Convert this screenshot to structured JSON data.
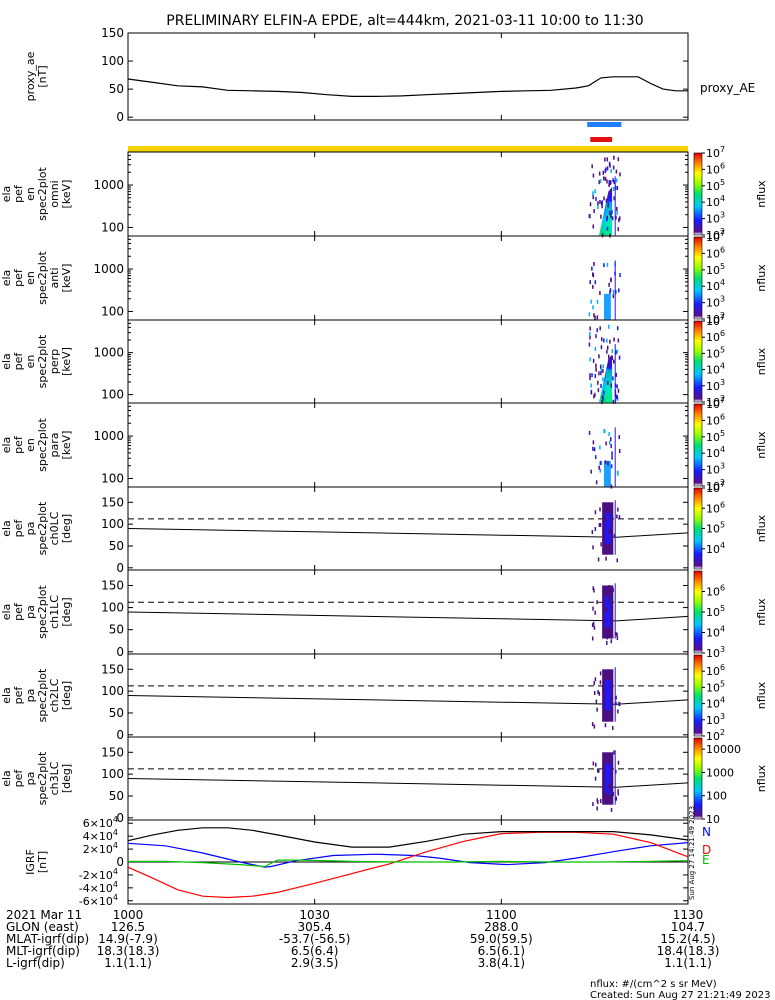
{
  "title": "PRELIMINARY ELFIN-A EPDE, alt=444km, 2021-03-11 10:00 to 11:30",
  "colors": {
    "state_bar_yellow": "#f5d200",
    "science_blue": "#1f7fff",
    "science_red": "#e01010",
    "mag_N": "#0000ff",
    "mag_D": "#ff0000",
    "mag_E": "#00c000",
    "mag_total": "#000000"
  },
  "footer_labels": {
    "date_label": "2021 Mar 11",
    "glon_label": "GLON (east)",
    "mlat_label": "MLAT-igrf(dip)",
    "mlt_label": "MLT-igrf(dip)",
    "l_label": "L-igrf(dip)",
    "units_note": "nflux: #/(cm^2 s sr MeV)",
    "created": "Created: Sun Aug 27 21:21:49 2023",
    "side_stamp": "Sun Aug 27 14:21:49 2023"
  },
  "footer_columns": [
    {
      "time": "1000",
      "glon": "126.5",
      "mlat": "14.9(-7.9)",
      "mlt": "18.3(18.3)",
      "l": "1.1(1.1)"
    },
    {
      "time": "1030",
      "glon": "305.4",
      "mlat": "-53.7(-56.5)",
      "mlt": "6.5(6.4)",
      "l": "2.9(3.5)"
    },
    {
      "time": "1100",
      "glon": "288.0",
      "mlat": "59.0(59.5)",
      "mlt": "6.5(6.1)",
      "l": "3.8(4.1)"
    },
    {
      "time": "1130",
      "glon": "104.7",
      "mlat": "15.2(4.5)",
      "mlt": "18.4(18.3)",
      "l": "1.1(1.1)"
    }
  ],
  "chart_data": [
    {
      "type": "line",
      "panel": "proxy_ae",
      "ylabel": [
        "proxy_ae",
        "[nT]"
      ],
      "legend": "proxy_AE",
      "ylim": [
        -5,
        150
      ],
      "yticks": [
        "150",
        "100",
        "50",
        "0"
      ],
      "ytick_values": [
        150,
        100,
        50,
        0
      ],
      "xlim_min": [
        0,
        90
      ],
      "x_min": [
        0,
        4,
        8,
        12,
        16,
        20,
        24,
        28,
        32,
        36,
        40,
        44,
        48,
        52,
        56,
        60,
        64,
        68,
        72,
        74,
        76,
        78,
        80,
        82,
        84,
        86,
        88,
        90
      ],
      "y": [
        68,
        62,
        56,
        54,
        48,
        47,
        46,
        44,
        40,
        37,
        37,
        38,
        40,
        42,
        44,
        46,
        47,
        48,
        52,
        56,
        70,
        72,
        72,
        72,
        60,
        50,
        47,
        47
      ]
    },
    {
      "type": "heatmap",
      "panel": "ela_pef_en_spec2plot_omni",
      "ylabel": [
        "ela",
        "pef",
        "en",
        "spec2plot",
        "omni",
        "[keV]"
      ],
      "yscale": "log",
      "ylim": [
        63,
        6000
      ],
      "yticks": [
        "1000",
        "100"
      ],
      "ytick_values": [
        1000,
        100
      ],
      "colorbar": {
        "label": "nflux",
        "ticks": [
          "10",
          "10",
          "10",
          "10",
          "10",
          "10"
        ],
        "exps": [
          "7",
          "6",
          "5",
          "4",
          "3",
          "2"
        ],
        "values": [
          10000000.0,
          1000000.0,
          100000.0,
          10000.0,
          1000.0,
          100.0
        ],
        "range": [
          100.0,
          10000000.0
        ]
      },
      "events": [
        {
          "t_start_min": 74,
          "t_end_min": 79,
          "peak_energy_keV": [
            60,
            1500
          ],
          "max_flux": 10000000.0
        }
      ]
    },
    {
      "type": "heatmap",
      "panel": "ela_pef_en_spec2plot_anti",
      "ylabel": [
        "ela",
        "pef",
        "en",
        "spec2plot",
        "anti",
        "[keV]"
      ],
      "yscale": "log",
      "ylim": [
        63,
        6000
      ],
      "yticks": [
        "1000",
        "100"
      ],
      "ytick_values": [
        1000,
        100
      ],
      "colorbar": {
        "label": "nflux",
        "ticks": [
          "10",
          "10",
          "10",
          "10",
          "10",
          "10"
        ],
        "exps": [
          "7",
          "6",
          "5",
          "4",
          "3",
          "2"
        ],
        "values": [
          10000000.0,
          1000000.0,
          100000.0,
          10000.0,
          1000.0,
          100.0
        ],
        "range": [
          100.0,
          10000000.0
        ]
      },
      "events": [
        {
          "t_start_min": 76,
          "t_end_min": 78,
          "peak_energy_keV": [
            80,
            400
          ],
          "max_flux": 100000.0
        }
      ]
    },
    {
      "type": "heatmap",
      "panel": "ela_pef_en_spec2plot_perp",
      "ylabel": [
        "ela",
        "pef",
        "en",
        "spec2plot",
        "perp",
        "[keV]"
      ],
      "yscale": "log",
      "ylim": [
        63,
        6000
      ],
      "yticks": [
        "1000",
        "100"
      ],
      "ytick_values": [
        1000,
        100
      ],
      "colorbar": {
        "label": "nflux",
        "ticks": [
          "10",
          "10",
          "10",
          "10",
          "10",
          "10"
        ],
        "exps": [
          "7",
          "6",
          "5",
          "4",
          "3",
          "2"
        ],
        "values": [
          10000000.0,
          1000000.0,
          100000.0,
          10000.0,
          1000.0,
          100.0
        ],
        "range": [
          100.0,
          10000000.0
        ]
      },
      "events": [
        {
          "t_start_min": 74,
          "t_end_min": 79,
          "peak_energy_keV": [
            60,
            1500
          ],
          "max_flux": 10000000.0
        }
      ]
    },
    {
      "type": "heatmap",
      "panel": "ela_pef_en_spec2plot_para",
      "ylabel": [
        "ela",
        "pef",
        "en",
        "spec2plot",
        "para",
        "[keV]"
      ],
      "yscale": "log",
      "ylim": [
        63,
        6000
      ],
      "yticks": [
        "1000",
        "100"
      ],
      "ytick_values": [
        1000,
        100
      ],
      "colorbar": {
        "label": "nflux",
        "ticks": [
          "10",
          "10",
          "10",
          "10",
          "10",
          "10"
        ],
        "exps": [
          "7",
          "6",
          "5",
          "4",
          "3",
          "2"
        ],
        "values": [
          10000000.0,
          1000000.0,
          100000.0,
          10000.0,
          1000.0,
          100.0
        ],
        "range": [
          100.0,
          10000000.0
        ]
      },
      "events": [
        {
          "t_start_min": 76,
          "t_end_min": 78,
          "peak_energy_keV": [
            70,
            300
          ],
          "max_flux": 100000.0
        }
      ]
    },
    {
      "type": "heatmap",
      "panel": "ela_pef_pa_spec2plot_ch0LC",
      "ylabel": [
        "ela",
        "pef",
        "pa",
        "spec2plot",
        "ch0LC",
        "[deg]"
      ],
      "ylim": [
        -5,
        185
      ],
      "yticks": [
        "150",
        "100",
        "50",
        "0"
      ],
      "ytick_values": [
        150,
        100,
        50,
        0
      ],
      "colorbar": {
        "label": "nflux",
        "ticks": [
          "10",
          "10",
          "10",
          "10"
        ],
        "exps": [
          "7",
          "6",
          "5",
          "4"
        ],
        "values": [
          10000000.0,
          1000000.0,
          100000.0,
          10000.0
        ],
        "range": [
          1000.0,
          10000000.0
        ]
      },
      "loss_cone_deg": {
        "solid_start": 90,
        "solid_end": 80,
        "dashed": 112
      }
    },
    {
      "type": "heatmap",
      "panel": "ela_pef_pa_spec2plot_ch1LC",
      "ylabel": [
        "ela",
        "pef",
        "pa",
        "spec2plot",
        "ch1LC",
        "[deg]"
      ],
      "ylim": [
        -5,
        185
      ],
      "yticks": [
        "150",
        "100",
        "50",
        "0"
      ],
      "ytick_values": [
        150,
        100,
        50,
        0
      ],
      "colorbar": {
        "label": "nflux",
        "ticks": [
          "10",
          "10",
          "10",
          "10"
        ],
        "exps": [
          "6",
          "5",
          "4",
          "3"
        ],
        "values": [
          1000000.0,
          100000.0,
          10000.0,
          1000.0
        ],
        "range": [
          1000.0,
          10000000.0
        ]
      },
      "loss_cone_deg": {
        "solid_start": 90,
        "solid_end": 80,
        "dashed": 112
      }
    },
    {
      "type": "heatmap",
      "panel": "ela_pef_pa_spec2plot_ch2LC",
      "ylabel": [
        "ela",
        "pef",
        "pa",
        "spec2plot",
        "ch2LC",
        "[deg]"
      ],
      "ylim": [
        -5,
        185
      ],
      "yticks": [
        "150",
        "100",
        "50",
        "0"
      ],
      "ytick_values": [
        150,
        100,
        50,
        0
      ],
      "colorbar": {
        "label": "nflux",
        "ticks": [
          "10",
          "10",
          "10",
          "10",
          "10"
        ],
        "exps": [
          "6",
          "5",
          "4",
          "3",
          "2"
        ],
        "values": [
          1000000.0,
          100000.0,
          10000.0,
          1000.0,
          100.0
        ],
        "range": [
          100.0,
          10000000.0
        ]
      },
      "loss_cone_deg": {
        "solid_start": 90,
        "solid_end": 80,
        "dashed": 112
      }
    },
    {
      "type": "heatmap",
      "panel": "ela_pef_pa_spec2plot_ch3LC",
      "ylabel": [
        "ela",
        "pef",
        "pa",
        "spec2plot",
        "ch3LC",
        "[deg]"
      ],
      "ylim": [
        -5,
        185
      ],
      "yticks": [
        "150",
        "100",
        "50",
        "0"
      ],
      "ytick_values": [
        150,
        100,
        50,
        0
      ],
      "colorbar": {
        "label": "nflux",
        "ticks": [
          "10000",
          "1000",
          "100",
          "10"
        ],
        "values": [
          10000,
          1000,
          100,
          10
        ],
        "range": [
          10,
          30000
        ]
      },
      "loss_cone_deg": {
        "solid_start": 90,
        "solid_end": 80,
        "dashed": 112
      }
    },
    {
      "type": "line",
      "panel": "IGRF",
      "ylabel": [
        "IGRF",
        "[nT]"
      ],
      "ylim": [
        -65000,
        65000
      ],
      "yticks": [
        "6",
        "4",
        "2",
        "0",
        "-2",
        "-4",
        "-6"
      ],
      "ytick_values": [
        60000,
        40000,
        20000,
        0,
        -20000,
        -40000,
        -60000
      ],
      "ytick_base": "×10",
      "ytick_exp": "4",
      "legend": [
        "N",
        "D",
        "E"
      ],
      "xlim_min": [
        0,
        90
      ],
      "series": [
        {
          "name": "N",
          "x": [
            0,
            6,
            12,
            18,
            22,
            23,
            27,
            33,
            40,
            46,
            50,
            55,
            61,
            67,
            72,
            78,
            84,
            90
          ],
          "y": [
            29000,
            25000,
            14000,
            0,
            -8000,
            -7000,
            2000,
            10000,
            12000,
            10000,
            6000,
            -1000,
            -4000,
            -1000,
            6000,
            16000,
            25000,
            30000
          ]
        },
        {
          "name": "D",
          "x": [
            0,
            4,
            8,
            12,
            16,
            20,
            24,
            30,
            36,
            42,
            48,
            54,
            60,
            66,
            72,
            78,
            84,
            90
          ],
          "y": [
            -8000,
            -25000,
            -43000,
            -53000,
            -55000,
            -53000,
            -47000,
            -33000,
            -18000,
            -3000,
            16000,
            32000,
            44000,
            46000,
            46000,
            43000,
            30000,
            8000
          ]
        },
        {
          "name": "E",
          "x": [
            0,
            6,
            12,
            18,
            22,
            24,
            28,
            36,
            44,
            52,
            60,
            68,
            76,
            84,
            90
          ],
          "y": [
            1000,
            1000,
            -1000,
            -4000,
            -7000,
            3000,
            3000,
            1000,
            0,
            0,
            1000,
            0,
            0,
            1000,
            2000
          ]
        },
        {
          "name": "total",
          "x": [
            0,
            4,
            8,
            12,
            16,
            20,
            24,
            30,
            36,
            42,
            48,
            54,
            60,
            66,
            72,
            78,
            84,
            90
          ],
          "y": [
            33000,
            42000,
            49000,
            53000,
            53000,
            49000,
            42000,
            31000,
            23000,
            23000,
            32000,
            43000,
            47000,
            47000,
            47000,
            47000,
            42000,
            34000
          ]
        }
      ]
    }
  ]
}
